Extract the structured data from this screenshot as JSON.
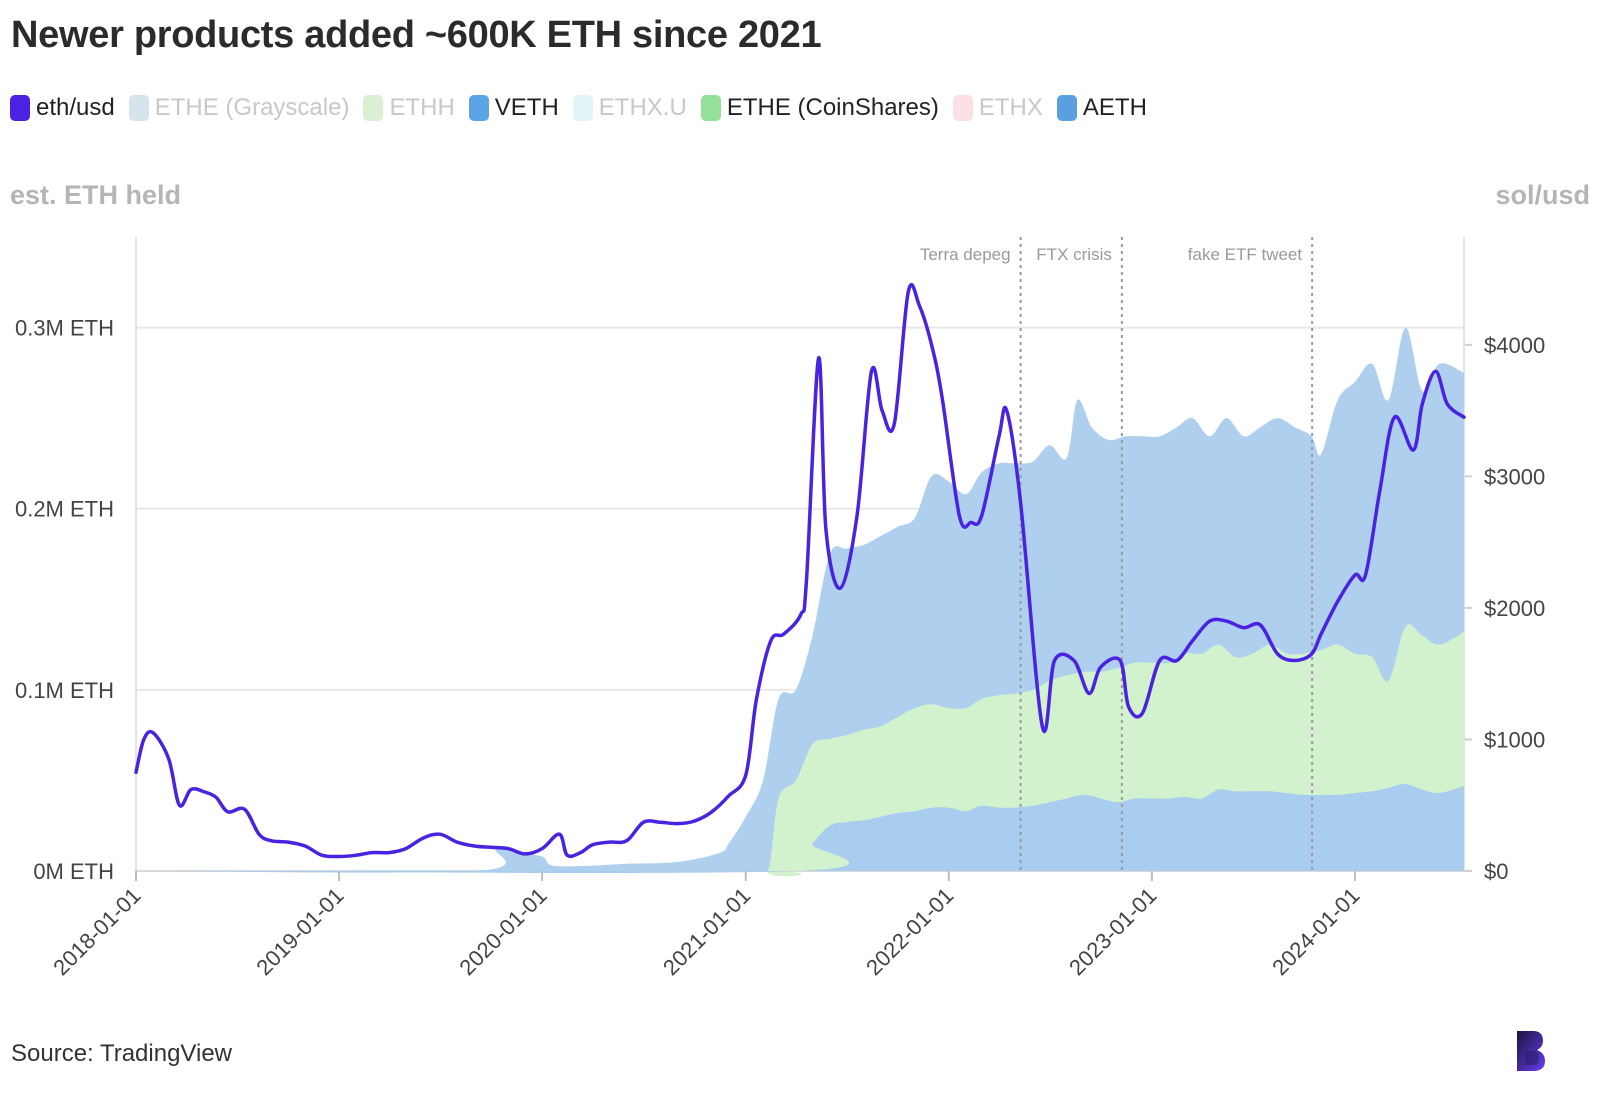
{
  "title": "Newer products added ~600K ETH since 2021",
  "legend": [
    {
      "label": "eth/usd",
      "color": "#4a23e0",
      "active": true
    },
    {
      "label": "ETHE (Grayscale)",
      "color": "#d6e3ea",
      "active": false
    },
    {
      "label": "ETHH",
      "color": "#d9f0d2",
      "active": false
    },
    {
      "label": "VETH",
      "color": "#5ba4e6",
      "active": true
    },
    {
      "label": "ETHX.U",
      "color": "#e2f4f7",
      "active": false
    },
    {
      "label": "ETHE (CoinShares)",
      "color": "#93e09a",
      "active": true
    },
    {
      "label": "ETHX",
      "color": "#fbe0e6",
      "active": false
    },
    {
      "label": "AETH",
      "color": "#5aa0e0",
      "active": true
    }
  ],
  "left_axis_title": "est. ETH held",
  "right_axis_title": "sol/usd",
  "source": "Source: TradingView",
  "chart_data": {
    "type": "area",
    "x_ticks": [
      "2018-01-01",
      "2019-01-01",
      "2020-01-01",
      "2021-01-01",
      "2022-01-01",
      "2023-01-01",
      "2024-01-01"
    ],
    "left_ticks": [
      {
        "value": 0,
        "label": "0M ETH"
      },
      {
        "value": 0.1,
        "label": "0.1M ETH"
      },
      {
        "value": 0.2,
        "label": "0.2M ETH"
      },
      {
        "value": 0.3,
        "label": "0.3M ETH"
      }
    ],
    "right_ticks": [
      {
        "value": 0,
        "label": "$0"
      },
      {
        "value": 1000,
        "label": "$1000"
      },
      {
        "value": 2000,
        "label": "$2000"
      },
      {
        "value": 3000,
        "label": "$3000"
      },
      {
        "value": 4000,
        "label": "$4000"
      }
    ],
    "x_range": [
      "2018-01-01",
      "2024-07-15"
    ],
    "left_range": [
      0,
      0.35
    ],
    "right_range": [
      0,
      4820
    ],
    "grid": true,
    "annotations": [
      {
        "date": "2022-05-10",
        "label": "Terra depeg"
      },
      {
        "date": "2022-11-08",
        "label": "FTX crisis"
      },
      {
        "date": "2023-10-16",
        "label": "fake ETF tweet"
      }
    ],
    "series": [
      {
        "name": "AETH",
        "axis": "left",
        "color": "#aed0ee",
        "x": [
          "2018-01-01",
          "2019-09-01",
          "2019-10-10",
          "2019-11-15",
          "2020-01-01",
          "2020-01-20",
          "2020-04-01",
          "2020-06-01",
          "2020-09-01",
          "2020-11-15",
          "2020-12-01",
          "2021-01-01",
          "2021-02-01",
          "2021-03-01",
          "2021-04-01",
          "2021-05-01",
          "2021-06-01",
          "2021-07-01",
          "2021-08-01",
          "2021-09-01",
          "2021-10-01",
          "2021-11-01",
          "2021-12-01",
          "2022-01-01",
          "2022-02-01",
          "2022-03-01",
          "2022-04-01",
          "2022-05-01",
          "2022-06-01",
          "2022-07-01",
          "2022-08-01",
          "2022-08-20",
          "2022-09-15",
          "2022-10-15",
          "2022-11-15",
          "2022-12-15",
          "2023-01-15",
          "2023-02-15",
          "2023-03-15",
          "2023-04-15",
          "2023-05-15",
          "2023-06-15",
          "2023-07-15",
          "2023-08-15",
          "2023-09-15",
          "2023-10-15",
          "2023-11-01",
          "2023-12-01",
          "2024-01-01",
          "2024-02-01",
          "2024-03-01",
          "2024-04-01",
          "2024-05-01",
          "2024-06-01",
          "2024-07-15"
        ],
        "values": [
          0,
          0,
          0.012,
          0.01,
          0.008,
          0.003,
          0.003,
          0.004,
          0.005,
          0.01,
          0.015,
          0.03,
          0.05,
          0.095,
          0.1,
          0.13,
          0.175,
          0.178,
          0.18,
          0.185,
          0.19,
          0.195,
          0.218,
          0.215,
          0.208,
          0.22,
          0.225,
          0.225,
          0.226,
          0.235,
          0.228,
          0.26,
          0.245,
          0.238,
          0.24,
          0.24,
          0.24,
          0.245,
          0.25,
          0.24,
          0.25,
          0.24,
          0.245,
          0.25,
          0.245,
          0.24,
          0.23,
          0.26,
          0.27,
          0.28,
          0.26,
          0.3,
          0.265,
          0.28,
          0.275
        ]
      },
      {
        "name": "ETHE (CoinShares)",
        "axis": "left",
        "color": "#d2f1cd",
        "x": [
          "2018-01-01",
          "2021-01-10",
          "2021-02-10",
          "2021-03-01",
          "2021-04-01",
          "2021-05-01",
          "2021-06-01",
          "2021-07-01",
          "2021-08-01",
          "2021-09-01",
          "2021-10-01",
          "2021-11-01",
          "2021-12-01",
          "2022-01-01",
          "2022-02-01",
          "2022-03-01",
          "2022-04-01",
          "2022-05-01",
          "2022-06-01",
          "2022-07-01",
          "2022-08-01",
          "2022-09-01",
          "2022-10-01",
          "2022-11-01",
          "2022-12-01",
          "2023-01-01",
          "2023-02-01",
          "2023-03-01",
          "2023-04-01",
          "2023-05-01",
          "2023-06-01",
          "2023-07-01",
          "2023-08-01",
          "2023-09-01",
          "2023-10-01",
          "2023-11-01",
          "2023-12-01",
          "2024-01-01",
          "2024-02-01",
          "2024-03-01",
          "2024-04-01",
          "2024-05-01",
          "2024-06-01",
          "2024-07-15"
        ],
        "values": [
          0,
          0,
          0,
          0.04,
          0.05,
          0.07,
          0.073,
          0.075,
          0.078,
          0.08,
          0.085,
          0.09,
          0.092,
          0.09,
          0.09,
          0.095,
          0.097,
          0.098,
          0.1,
          0.105,
          0.108,
          0.11,
          0.11,
          0.112,
          0.115,
          0.115,
          0.115,
          0.12,
          0.12,
          0.125,
          0.118,
          0.12,
          0.125,
          0.12,
          0.12,
          0.122,
          0.125,
          0.12,
          0.118,
          0.105,
          0.135,
          0.13,
          0.125,
          0.132
        ]
      },
      {
        "name": "VETH",
        "axis": "left",
        "color": "#a9cdef",
        "x": [
          "2018-01-01",
          "2021-04-01",
          "2021-05-01",
          "2021-06-01",
          "2021-07-01",
          "2021-08-01",
          "2021-09-01",
          "2021-10-01",
          "2021-11-01",
          "2021-12-01",
          "2022-01-01",
          "2022-02-01",
          "2022-03-01",
          "2022-04-01",
          "2022-05-01",
          "2022-06-01",
          "2022-07-01",
          "2022-08-01",
          "2022-09-01",
          "2022-10-01",
          "2022-11-01",
          "2022-12-01",
          "2023-01-01",
          "2023-02-01",
          "2023-03-01",
          "2023-04-01",
          "2023-05-01",
          "2023-06-01",
          "2023-07-01",
          "2023-08-01",
          "2023-09-01",
          "2023-10-01",
          "2023-11-01",
          "2023-12-01",
          "2024-01-01",
          "2024-02-01",
          "2024-03-01",
          "2024-04-01",
          "2024-05-01",
          "2024-06-01",
          "2024-07-15"
        ],
        "values": [
          0,
          0,
          0.015,
          0.025,
          0.027,
          0.028,
          0.03,
          0.032,
          0.033,
          0.035,
          0.035,
          0.033,
          0.036,
          0.035,
          0.035,
          0.036,
          0.038,
          0.04,
          0.042,
          0.04,
          0.038,
          0.04,
          0.04,
          0.04,
          0.041,
          0.04,
          0.045,
          0.044,
          0.044,
          0.044,
          0.043,
          0.042,
          0.042,
          0.042,
          0.043,
          0.044,
          0.046,
          0.048,
          0.045,
          0.043,
          0.047
        ]
      },
      {
        "name": "eth/usd",
        "axis": "right",
        "color": "#4a23e0",
        "x": [
          "2018-01-01",
          "2018-01-15",
          "2018-02-01",
          "2018-03-01",
          "2018-03-20",
          "2018-04-10",
          "2018-05-05",
          "2018-05-25",
          "2018-06-15",
          "2018-07-15",
          "2018-08-10",
          "2018-09-01",
          "2018-10-01",
          "2018-11-01",
          "2018-12-01",
          "2019-01-01",
          "2019-02-01",
          "2019-03-01",
          "2019-04-01",
          "2019-05-01",
          "2019-06-01",
          "2019-07-01",
          "2019-08-01",
          "2019-09-01",
          "2019-10-01",
          "2019-11-01",
          "2019-12-01",
          "2020-01-01",
          "2020-02-01",
          "2020-02-15",
          "2020-03-10",
          "2020-04-01",
          "2020-05-01",
          "2020-06-01",
          "2020-07-01",
          "2020-08-01",
          "2020-09-01",
          "2020-10-01",
          "2020-11-01",
          "2020-12-01",
          "2021-01-01",
          "2021-01-20",
          "2021-02-15",
          "2021-03-10",
          "2021-04-10",
          "2021-04-20",
          "2021-05-12",
          "2021-05-25",
          "2021-06-20",
          "2021-07-20",
          "2021-08-15",
          "2021-09-03",
          "2021-09-25",
          "2021-10-20",
          "2021-11-09",
          "2021-12-01",
          "2021-12-20",
          "2022-01-20",
          "2022-02-10",
          "2022-03-01",
          "2022-04-01",
          "2022-04-15",
          "2022-05-10",
          "2022-06-18",
          "2022-07-10",
          "2022-08-14",
          "2022-09-10",
          "2022-10-01",
          "2022-11-05",
          "2022-11-20",
          "2022-12-15",
          "2023-01-15",
          "2023-02-15",
          "2023-03-15",
          "2023-04-15",
          "2023-05-15",
          "2023-06-15",
          "2023-07-15",
          "2023-08-15",
          "2023-09-15",
          "2023-10-15",
          "2023-11-01",
          "2023-12-01",
          "2024-01-01",
          "2024-01-20",
          "2024-02-15",
          "2024-03-12",
          "2024-04-15",
          "2024-05-01",
          "2024-05-25",
          "2024-06-15",
          "2024-07-15"
        ],
        "values": [
          750,
          1000,
          1050,
          850,
          500,
          620,
          600,
          560,
          450,
          470,
          280,
          230,
          220,
          190,
          120,
          110,
          120,
          140,
          140,
          170,
          250,
          280,
          220,
          190,
          180,
          170,
          130,
          170,
          280,
          120,
          140,
          200,
          220,
          230,
          370,
          370,
          360,
          380,
          450,
          570,
          730,
          1300,
          1750,
          1800,
          1950,
          2200,
          3900,
          2600,
          2150,
          2700,
          3800,
          3500,
          3400,
          4400,
          4300,
          4000,
          3600,
          2700,
          2650,
          2700,
          3300,
          3500,
          2800,
          1100,
          1600,
          1600,
          1350,
          1550,
          1600,
          1250,
          1200,
          1600,
          1600,
          1750,
          1900,
          1900,
          1850,
          1870,
          1650,
          1600,
          1650,
          1800,
          2050,
          2250,
          2250,
          2900,
          3450,
          3200,
          3550,
          3800,
          3550,
          3450
        ]
      }
    ]
  }
}
